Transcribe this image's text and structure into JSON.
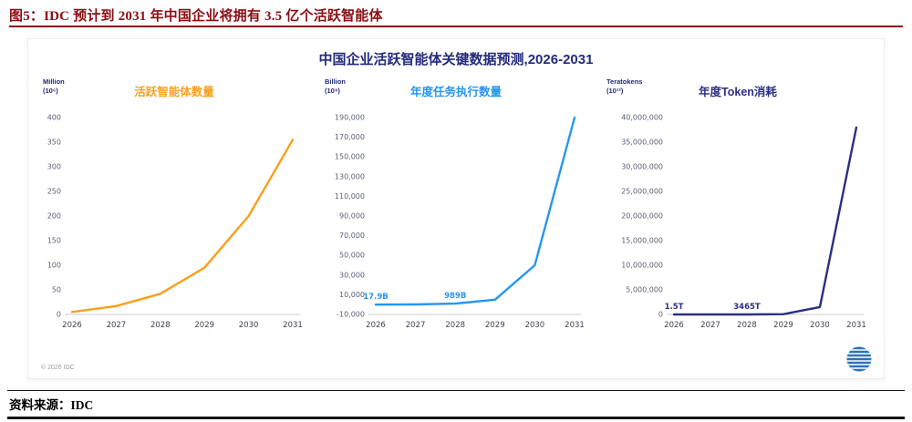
{
  "header": {
    "title": "图5：IDC 预计到 2031 年中国企业将拥有 3.5 亿个活跃智能体",
    "accent_color": "#8B0D12"
  },
  "panel": {
    "title": "中国企业活跃智能体关键数据预测,2026-2031",
    "title_color": "#232A7C",
    "copyright": "© 2026 IDC",
    "logo_icon": "idc-globe-icon",
    "logo_color": "#2D72B9"
  },
  "footer": {
    "source": "资料来源：IDC"
  },
  "chart_data": [
    {
      "type": "line",
      "title": "活跃智能体数量",
      "unit_label": "Million\n(10⁶)",
      "color": "#F9A01B",
      "categories": [
        "2026",
        "2027",
        "2028",
        "2029",
        "2030",
        "2031"
      ],
      "values": [
        5,
        17,
        42,
        95,
        200,
        355
      ],
      "ylim": [
        0,
        400
      ],
      "ytick_step": 50,
      "grid": false,
      "legend": false,
      "annotations": []
    },
    {
      "type": "line",
      "title": "年度任务执行数量",
      "unit_label": "Billion\n(10⁹)",
      "color": "#2596F2",
      "categories": [
        "2026",
        "2027",
        "2028",
        "2029",
        "2030",
        "2031"
      ],
      "values": [
        17.9,
        150,
        989,
        5000,
        40000,
        190000
      ],
      "ylim": [
        -10000,
        190000
      ],
      "ytick_step": 20000,
      "grid": false,
      "legend": false,
      "annotations": [
        {
          "x": "2026",
          "label": "17.9B"
        },
        {
          "x": "2028",
          "label": "989B"
        }
      ]
    },
    {
      "type": "line",
      "title": "年度Token消耗",
      "unit_label": "Teratokens\n(10¹²)",
      "color": "#2B2F84",
      "categories": [
        "2026",
        "2027",
        "2028",
        "2029",
        "2030",
        "2031"
      ],
      "values": [
        1.5,
        600,
        3465,
        60000,
        1500000,
        38000000
      ],
      "ylim": [
        0,
        40000000
      ],
      "ytick_step": 5000000,
      "grid": false,
      "legend": false,
      "annotations": [
        {
          "x": "2026",
          "label": "1.5T"
        },
        {
          "x": "2028",
          "label": "3465T"
        }
      ]
    }
  ]
}
